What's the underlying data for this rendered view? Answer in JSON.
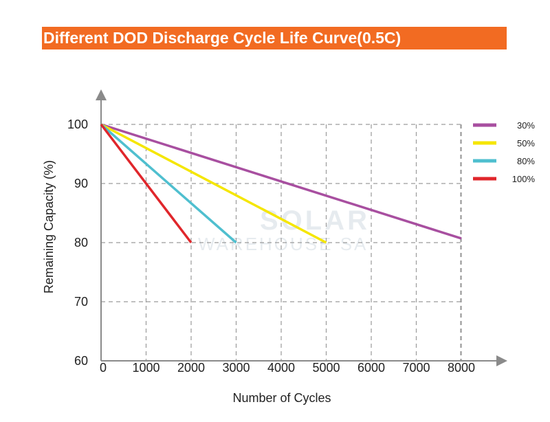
{
  "chart_data": {
    "type": "line",
    "title": "Different DOD Discharge Cycle Life  Curve(0.5C)",
    "xlabel": "Number of Cycles",
    "ylabel": "Remaining Capacity (%)",
    "xlim": [
      0,
      8000
    ],
    "ylim": [
      60,
      100
    ],
    "x_ticks": [
      0,
      1000,
      2000,
      3000,
      4000,
      5000,
      6000,
      7000,
      8000
    ],
    "y_ticks": [
      100,
      90,
      80,
      70,
      60
    ],
    "x_tick_labels": [
      "0",
      "1000",
      "2000",
      "3000",
      "4000",
      "5000",
      "6000",
      "7000",
      "8000"
    ],
    "y_tick_labels": [
      "100",
      "90",
      "80",
      "70",
      "60"
    ],
    "grid": true,
    "legend_position": "top-right",
    "series": [
      {
        "name": "30%",
        "color": "#a84fa0",
        "x": [
          0,
          8000
        ],
        "y": [
          100,
          80.7
        ]
      },
      {
        "name": "50%",
        "color": "#f5e600",
        "x": [
          0,
          5000
        ],
        "y": [
          100,
          80
        ]
      },
      {
        "name": "80%",
        "color": "#4fbfcf",
        "x": [
          0,
          3000
        ],
        "y": [
          100,
          80
        ]
      },
      {
        "name": "100%",
        "color": "#e0262b",
        "x": [
          0,
          2000
        ],
        "y": [
          100,
          80
        ]
      }
    ]
  },
  "watermark": {
    "line1": "SOLAR",
    "line2": "WAREHOUSE SA"
  }
}
